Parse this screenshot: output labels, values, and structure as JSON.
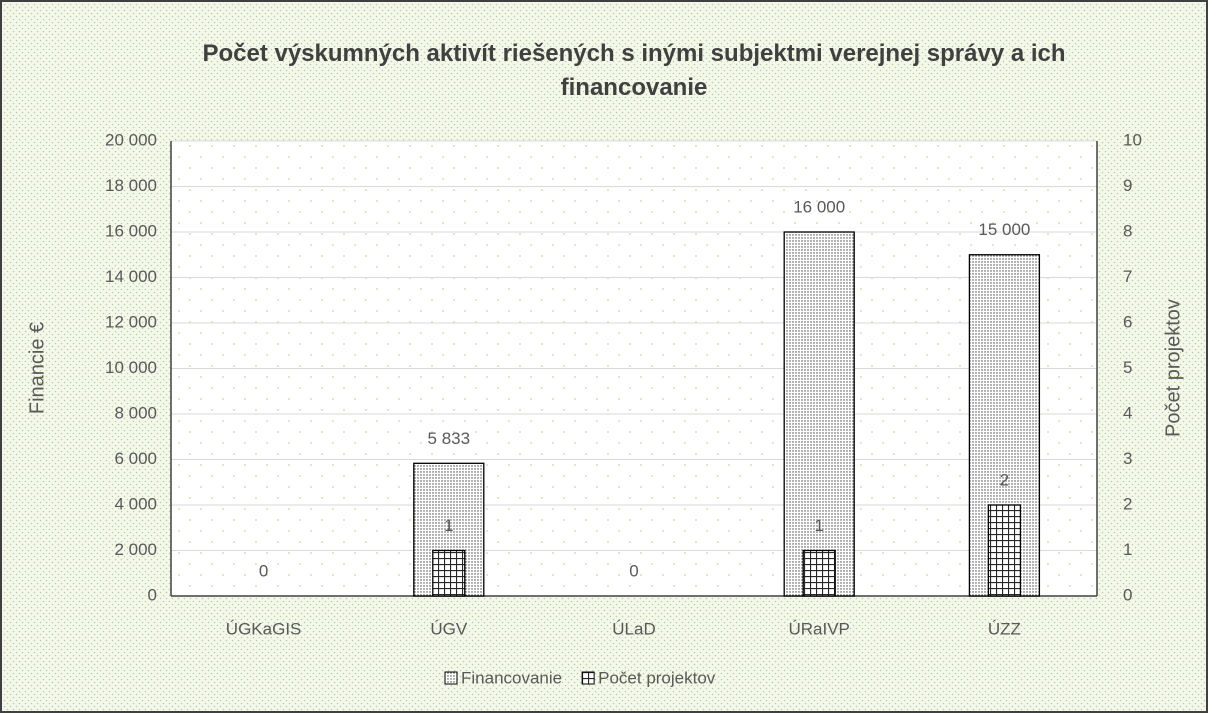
{
  "chart_data": {
    "type": "bar",
    "title": "Počet výskumných aktivít riešených s inými subjektmi verejnej správy a ich financovanie",
    "categories": [
      "ÚGKaGIS",
      "ÚGV",
      "ÚLaD",
      "ÚRaIVP",
      "ÚZZ"
    ],
    "series": [
      {
        "name": "Financovanie",
        "color": "#404040",
        "values": [
          0,
          5833,
          0,
          16000,
          15000
        ],
        "value_labels": [
          "0",
          "5 833",
          "0",
          "16 000",
          "15 000"
        ]
      },
      {
        "name": "Počet projektov",
        "color": "#262626",
        "axis": "y2",
        "values": [
          0,
          1,
          0,
          1,
          2
        ],
        "value_labels": [
          null,
          "1",
          null,
          "1",
          "2"
        ]
      }
    ],
    "ylabel": "Financie €",
    "y2label": "Počet projektov",
    "ylim": [
      0,
      20000
    ],
    "yticks": [
      0,
      {
        "value": 2000,
        "label": "2 000"
      },
      {
        "value": 4000,
        "label": "4 000"
      },
      {
        "value": 6000,
        "label": "6 000"
      },
      {
        "value": 8000,
        "label": "8 000"
      },
      {
        "value": 10000,
        "label": "10 000"
      },
      {
        "value": 12000,
        "label": "12 000"
      },
      {
        "value": 14000,
        "label": "14 000"
      },
      {
        "value": 16000,
        "label": "16 000"
      },
      {
        "value": 18000,
        "label": "18 000"
      },
      {
        "value": 20000,
        "label": "20 000"
      }
    ],
    "y2lim": [
      0,
      10
    ],
    "y2ticks": [
      0,
      1,
      2,
      3,
      4,
      5,
      6,
      7,
      8,
      9,
      10
    ],
    "grid": true,
    "legend": "bottom"
  }
}
